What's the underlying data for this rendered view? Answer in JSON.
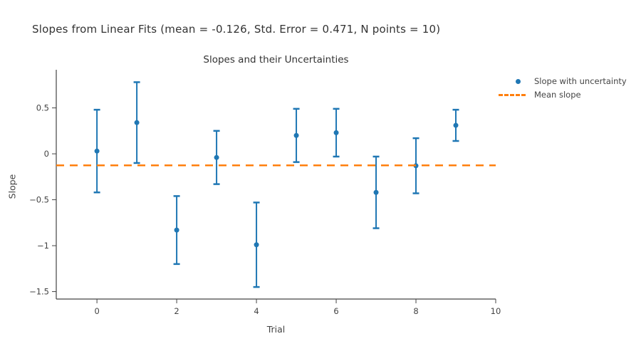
{
  "figure": {
    "suptitle": "Slopes from Linear Fits (mean = -0.126, Std. Error = 0.471, N points = 10)",
    "background": "#ffffff"
  },
  "chart_data": {
    "type": "scatter",
    "title": "Slopes and their Uncertainties",
    "xlabel": "Trial",
    "ylabel": "Slope",
    "x": [
      0,
      1,
      2,
      3,
      4,
      5,
      6,
      7,
      8,
      9
    ],
    "series": [
      {
        "name": "Slope with uncertainty",
        "type": "scatter-errorbar",
        "color": "#1f77b4",
        "y": [
          0.03,
          0.34,
          -0.83,
          -0.04,
          -0.99,
          0.2,
          0.23,
          -0.42,
          -0.13,
          0.31
        ],
        "yerr": [
          0.45,
          0.44,
          0.37,
          0.29,
          0.46,
          0.29,
          0.26,
          0.39,
          0.3,
          0.17
        ]
      },
      {
        "name": "Mean slope",
        "type": "hline-dashed",
        "color": "#ff7f0e",
        "value": -0.126
      }
    ],
    "stats": {
      "mean": -0.126,
      "std_error": 0.471,
      "n_points": 10
    },
    "xlim": [
      -1.02,
      10
    ],
    "ylim": [
      -1.581,
      0.915
    ],
    "xticks": {
      "values": [
        0,
        2,
        4,
        6,
        8,
        10
      ],
      "labels": [
        "0",
        "2",
        "4",
        "6",
        "8",
        "10"
      ]
    },
    "yticks": {
      "values": [
        0.5,
        0,
        -0.5,
        -1,
        -1.5
      ],
      "labels": [
        "0.5",
        "0",
        "−0.5",
        "−1",
        "−1.5"
      ]
    },
    "grid": false,
    "legend_position": "outside-right",
    "colors": {
      "axis": "#444444",
      "tick_label": "#444444",
      "title": "#333333"
    }
  }
}
